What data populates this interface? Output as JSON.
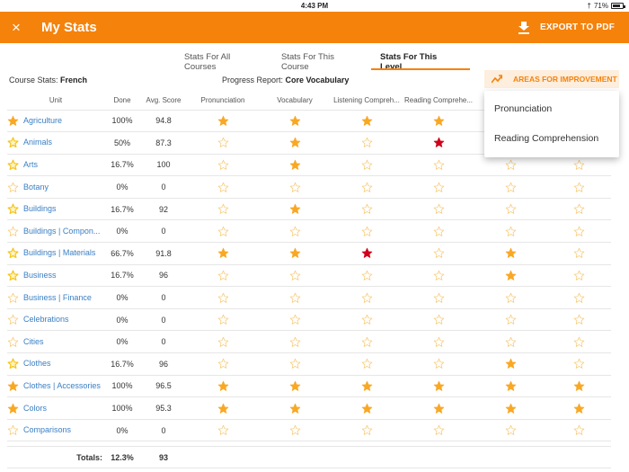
{
  "status_bar": {
    "time": "4:43 PM",
    "battery": "71%",
    "bluetooth_icon": "bluetooth-icon"
  },
  "app_bar": {
    "close_icon": "×",
    "title": "My Stats",
    "export_label": "EXPORT TO PDF"
  },
  "tabs": [
    {
      "label": "Stats For All Courses",
      "active": false
    },
    {
      "label": "Stats For This Course",
      "active": false
    },
    {
      "label": "Stats For This Level",
      "active": true
    }
  ],
  "filters": {
    "course_label": "Course Stats:",
    "course_value": "French",
    "progress_label": "Progress Report:",
    "progress_value": "Core Vocabulary",
    "improvement_button": "AREAS FOR IMPROVEMENT"
  },
  "dropdown": {
    "items": [
      "Pronunciation",
      "Reading Comprehension"
    ]
  },
  "colors": {
    "accent": "#f5820b",
    "star_filled": "#f9a825",
    "star_red": "#d0021b",
    "link": "#3a7fc4"
  },
  "table": {
    "columns": [
      "Unit",
      "Done",
      "Avg. Score",
      "Pronunciation",
      "Vocabulary",
      "Listening Compreh...",
      "Reading Comprehe...",
      "",
      ""
    ],
    "rows": [
      {
        "status": "full",
        "unit": "Agriculture",
        "done": "100%",
        "score": "94.8",
        "skills": [
          "full",
          "full",
          "full",
          "full",
          "hidden",
          "hidden"
        ]
      },
      {
        "status": "partial",
        "unit": "Animals",
        "done": "50%",
        "score": "87.3",
        "skills": [
          "empty",
          "full",
          "empty",
          "red",
          "hidden",
          "hidden"
        ]
      },
      {
        "status": "partial",
        "unit": "Arts",
        "done": "16.7%",
        "score": "100",
        "skills": [
          "empty",
          "full",
          "empty",
          "empty",
          "empty",
          "empty"
        ]
      },
      {
        "status": "empty",
        "unit": "Botany",
        "done": "0%",
        "score": "0",
        "skills": [
          "empty",
          "empty",
          "empty",
          "empty",
          "empty",
          "empty"
        ]
      },
      {
        "status": "partial",
        "unit": "Buildings",
        "done": "16.7%",
        "score": "92",
        "skills": [
          "empty",
          "full",
          "empty",
          "empty",
          "empty",
          "empty"
        ]
      },
      {
        "status": "empty",
        "unit": "Buildings | Compon...",
        "done": "0%",
        "score": "0",
        "skills": [
          "empty",
          "empty",
          "empty",
          "empty",
          "empty",
          "empty"
        ]
      },
      {
        "status": "partial",
        "unit": "Buildings | Materials",
        "done": "66.7%",
        "score": "91.8",
        "skills": [
          "full",
          "full",
          "red",
          "empty",
          "full",
          "empty"
        ]
      },
      {
        "status": "partial",
        "unit": "Business",
        "done": "16.7%",
        "score": "96",
        "skills": [
          "empty",
          "empty",
          "empty",
          "empty",
          "full",
          "empty"
        ]
      },
      {
        "status": "empty",
        "unit": "Business | Finance",
        "done": "0%",
        "score": "0",
        "skills": [
          "empty",
          "empty",
          "empty",
          "empty",
          "empty",
          "empty"
        ]
      },
      {
        "status": "empty",
        "unit": "Celebrations",
        "done": "0%",
        "score": "0",
        "skills": [
          "empty",
          "empty",
          "empty",
          "empty",
          "empty",
          "empty"
        ]
      },
      {
        "status": "empty",
        "unit": "Cities",
        "done": "0%",
        "score": "0",
        "skills": [
          "empty",
          "empty",
          "empty",
          "empty",
          "empty",
          "empty"
        ]
      },
      {
        "status": "partial",
        "unit": "Clothes",
        "done": "16.7%",
        "score": "96",
        "skills": [
          "empty",
          "empty",
          "empty",
          "empty",
          "full",
          "empty"
        ]
      },
      {
        "status": "full",
        "unit": "Clothes | Accessories",
        "done": "100%",
        "score": "96.5",
        "skills": [
          "full",
          "full",
          "full",
          "full",
          "full",
          "full"
        ]
      },
      {
        "status": "full",
        "unit": "Colors",
        "done": "100%",
        "score": "95.3",
        "skills": [
          "full",
          "full",
          "full",
          "full",
          "full",
          "full"
        ]
      },
      {
        "status": "empty",
        "unit": "Comparisons",
        "done": "0%",
        "score": "0",
        "skills": [
          "empty",
          "empty",
          "empty",
          "empty",
          "empty",
          "empty"
        ]
      }
    ],
    "totals": {
      "label": "Totals:",
      "done": "12.3%",
      "score": "93"
    }
  }
}
